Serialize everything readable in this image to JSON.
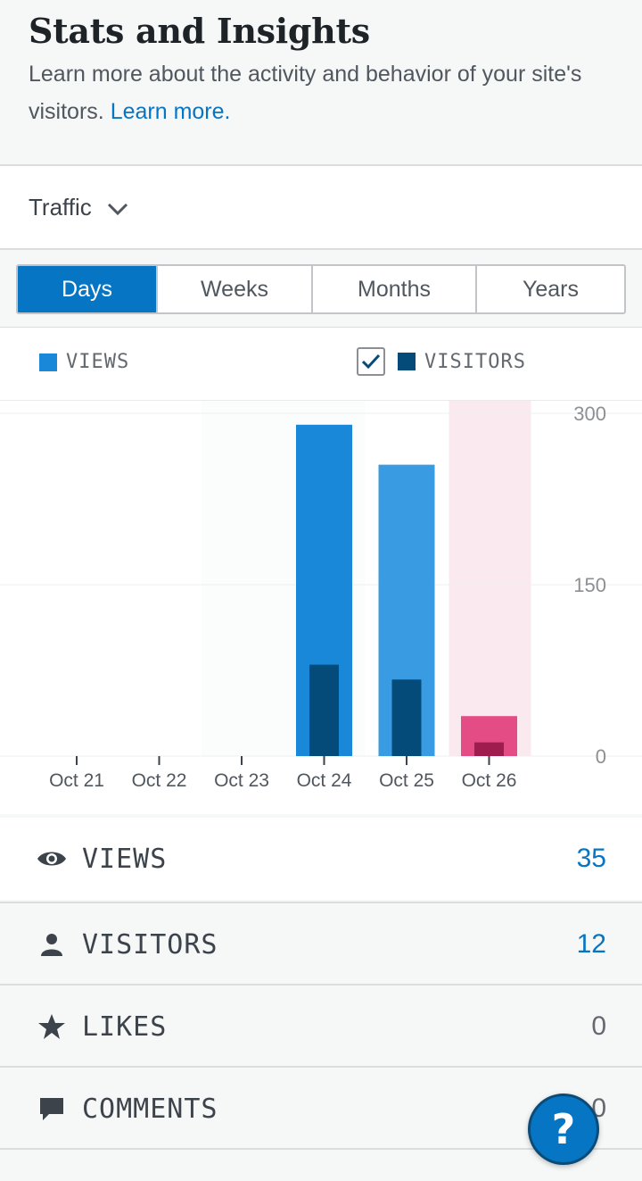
{
  "header": {
    "title": "Stats and Insights",
    "subtitle": "Learn more about the activity and behavior of your site's visitors.",
    "learn_more": "Learn more."
  },
  "traffic": {
    "label": "Traffic",
    "icon": "chevron-down-icon"
  },
  "period_tabs": [
    {
      "label": "Days",
      "active": true
    },
    {
      "label": "Weeks",
      "active": false
    },
    {
      "label": "Months",
      "active": false
    },
    {
      "label": "Years",
      "active": false
    }
  ],
  "legend": {
    "views": "VIEWS",
    "visitors": "VISITORS",
    "visitors_checked": true
  },
  "colors": {
    "views": "#1a88d9",
    "views_alt": "#399ce3",
    "visitors": "#044b7a",
    "today_views": "#e34c84",
    "today_visitors": "#9e1c4e",
    "today_bg": "#fae9ef",
    "accent": "#0675c4"
  },
  "chart_data": {
    "type": "bar",
    "categories": [
      "Oct 21",
      "Oct 22",
      "Oct 23",
      "Oct 24",
      "Oct 25",
      "Oct 26"
    ],
    "series": [
      {
        "name": "VIEWS",
        "values": [
          0,
          0,
          0,
          290,
          255,
          35
        ]
      },
      {
        "name": "VISITORS",
        "values": [
          0,
          0,
          0,
          80,
          67,
          12
        ]
      }
    ],
    "yticks": [
      "300",
      "150",
      "0"
    ],
    "ylim": [
      0,
      300
    ],
    "highlight_category": "Oct 26"
  },
  "stats": [
    {
      "label": "VIEWS",
      "value": "35",
      "icon": "eye-icon",
      "highlight": true
    },
    {
      "label": "VISITORS",
      "value": "12",
      "icon": "person-icon",
      "highlight": true
    },
    {
      "label": "LIKES",
      "value": "0",
      "icon": "star-icon",
      "highlight": false
    },
    {
      "label": "COMMENTS",
      "value": "0",
      "icon": "comment-icon",
      "highlight": false
    }
  ],
  "help": {
    "label": "?"
  }
}
